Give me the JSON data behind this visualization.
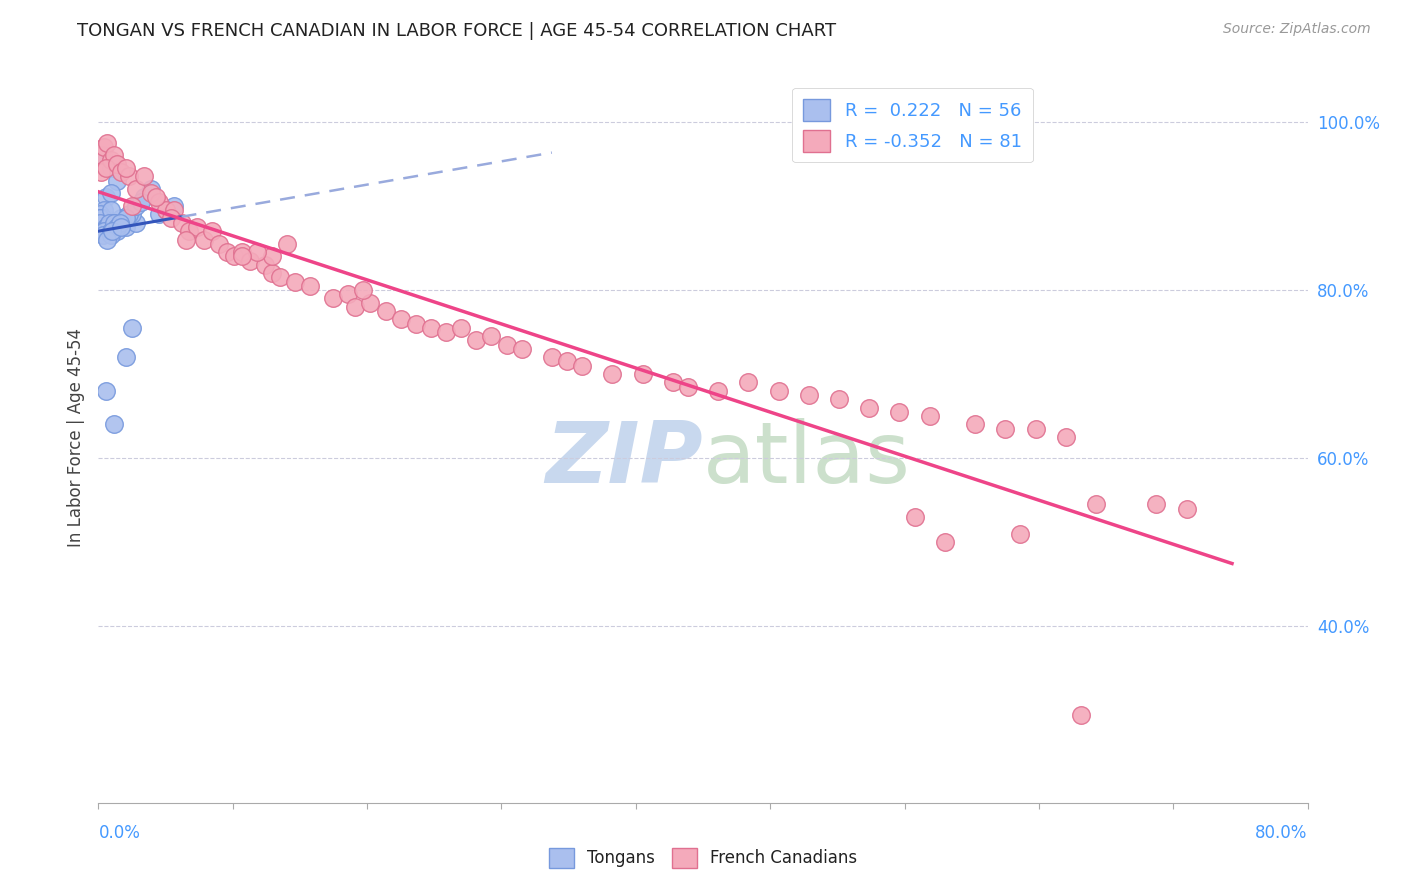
{
  "title": "TONGAN VS FRENCH CANADIAN IN LABOR FORCE | AGE 45-54 CORRELATION CHART",
  "source": "Source: ZipAtlas.com",
  "ylabel": "In Labor Force | Age 45-54",
  "right_yticks": [
    1.0,
    0.8,
    0.6,
    0.4
  ],
  "right_yticklabels": [
    "100.0%",
    "80.0%",
    "60.0%",
    "40.0%"
  ],
  "xmin": 0.0,
  "xmax": 0.8,
  "ymin": 0.19,
  "ymax": 1.06,
  "tongan_R": 0.222,
  "tongan_N": 56,
  "french_R": -0.352,
  "french_N": 81,
  "blue_dot_face": "#AABFEE",
  "blue_dot_edge": "#7799DD",
  "pink_dot_face": "#F4AABB",
  "pink_dot_edge": "#E07090",
  "blue_line_color": "#3355BB",
  "pink_line_color": "#EE4488",
  "blue_dash_color": "#99AADD",
  "grid_color": "#CCCCDD",
  "label_color": "#4499FF",
  "title_color": "#222222",
  "source_color": "#999999",
  "watermark_color": "#C8D8EE",
  "tongan_x": [
    0.005,
    0.005,
    0.008,
    0.003,
    0.012,
    0.008,
    0.004,
    0.006,
    0.003,
    0.001,
    0.002,
    0.001,
    0.001,
    0.002,
    0.003,
    0.001,
    0.001,
    0.002,
    0.001,
    0.001,
    0.001,
    0.005,
    0.008,
    0.012,
    0.018,
    0.025,
    0.015,
    0.022,
    0.008,
    0.01,
    0.006,
    0.007,
    0.004,
    0.003,
    0.02,
    0.025,
    0.03,
    0.035,
    0.028,
    0.018,
    0.012,
    0.008,
    0.01,
    0.012,
    0.014,
    0.008,
    0.006,
    0.009,
    0.015,
    0.04,
    0.05,
    0.045,
    0.022,
    0.018,
    0.01,
    0.005
  ],
  "tongan_y": [
    0.885,
    0.91,
    0.945,
    0.96,
    0.93,
    0.915,
    0.895,
    0.875,
    0.875,
    0.88,
    0.885,
    0.89,
    0.875,
    0.88,
    0.885,
    0.88,
    0.885,
    0.875,
    0.88,
    0.885,
    0.88,
    0.875,
    0.87,
    0.87,
    0.875,
    0.88,
    0.885,
    0.89,
    0.895,
    0.88,
    0.875,
    0.88,
    0.87,
    0.865,
    0.89,
    0.9,
    0.91,
    0.92,
    0.905,
    0.885,
    0.875,
    0.87,
    0.88,
    0.875,
    0.88,
    0.865,
    0.86,
    0.87,
    0.875,
    0.89,
    0.9,
    0.895,
    0.755,
    0.72,
    0.64,
    0.68
  ],
  "french_x": [
    0.002,
    0.004,
    0.006,
    0.002,
    0.008,
    0.01,
    0.005,
    0.012,
    0.015,
    0.02,
    0.018,
    0.025,
    0.03,
    0.022,
    0.035,
    0.04,
    0.045,
    0.038,
    0.05,
    0.048,
    0.055,
    0.06,
    0.065,
    0.058,
    0.07,
    0.075,
    0.08,
    0.085,
    0.09,
    0.095,
    0.1,
    0.11,
    0.115,
    0.12,
    0.13,
    0.14,
    0.125,
    0.115,
    0.105,
    0.095,
    0.155,
    0.165,
    0.17,
    0.18,
    0.175,
    0.19,
    0.2,
    0.21,
    0.22,
    0.23,
    0.24,
    0.25,
    0.26,
    0.27,
    0.28,
    0.3,
    0.31,
    0.32,
    0.34,
    0.36,
    0.38,
    0.39,
    0.41,
    0.43,
    0.45,
    0.47,
    0.49,
    0.51,
    0.53,
    0.55,
    0.58,
    0.6,
    0.62,
    0.64,
    0.66,
    0.7,
    0.72,
    0.54,
    0.56,
    0.61,
    0.65
  ],
  "french_y": [
    0.96,
    0.97,
    0.975,
    0.94,
    0.955,
    0.96,
    0.945,
    0.95,
    0.94,
    0.935,
    0.945,
    0.92,
    0.935,
    0.9,
    0.915,
    0.905,
    0.895,
    0.91,
    0.895,
    0.885,
    0.88,
    0.87,
    0.875,
    0.86,
    0.86,
    0.87,
    0.855,
    0.845,
    0.84,
    0.845,
    0.835,
    0.83,
    0.82,
    0.815,
    0.81,
    0.805,
    0.855,
    0.84,
    0.845,
    0.84,
    0.79,
    0.795,
    0.78,
    0.785,
    0.8,
    0.775,
    0.765,
    0.76,
    0.755,
    0.75,
    0.755,
    0.74,
    0.745,
    0.735,
    0.73,
    0.72,
    0.715,
    0.71,
    0.7,
    0.7,
    0.69,
    0.685,
    0.68,
    0.69,
    0.68,
    0.675,
    0.67,
    0.66,
    0.655,
    0.65,
    0.64,
    0.635,
    0.635,
    0.625,
    0.545,
    0.545,
    0.54,
    0.53,
    0.5,
    0.51,
    0.295
  ]
}
